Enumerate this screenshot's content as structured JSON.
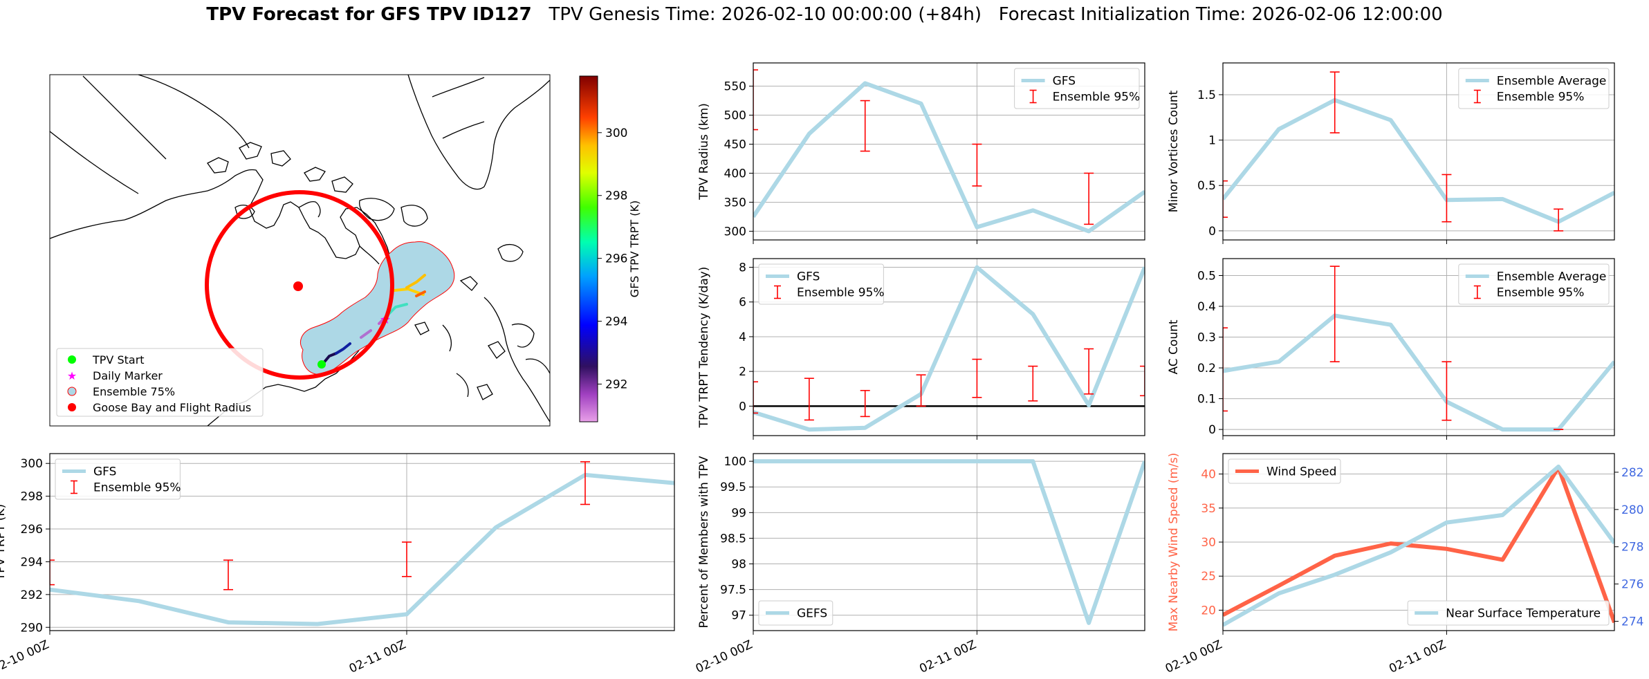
{
  "title": {
    "bold": "TPV Forecast for GFS TPV ID127",
    "genesis": "TPV Genesis Time: 2026-02-10 00:00:00 (+84h)",
    "init": "Forecast Initialization Time: 2026-02-06 12:00:00"
  },
  "colors": {
    "gfs_line": "#add8e6",
    "ensemble_err": "#ff0000",
    "wind": "#ff6347",
    "temp_axis": "#4169e1",
    "zero_line": "#000000",
    "swath_fill": "#add8e6",
    "swath_edge": "#ff0000",
    "flight_radius": "#ff0000",
    "start_marker": "#00ff00",
    "daily_marker": "#ff00ff",
    "goose_bay": "#ff0000"
  },
  "map": {
    "colorbar": {
      "label": "GFS TPV TRPT (K)",
      "ticks": [
        292,
        294,
        296,
        298,
        300
      ],
      "range": [
        290.8,
        301.8
      ]
    },
    "legend": [
      "TPV Start",
      "Daily Marker",
      "Ensemble 75%",
      "Goose Bay and Flight Radius"
    ]
  },
  "x_tick_labels": [
    "02-10 00Z",
    "02-11 00Z"
  ],
  "chart_data": [
    {
      "id": "radius",
      "type": "line",
      "ylabel": "TPV Radius (km)",
      "ylim": [
        285,
        590
      ],
      "yticks": [
        300,
        350,
        400,
        450,
        500,
        550
      ],
      "x": [
        0,
        6,
        12,
        18,
        24,
        30,
        36,
        42
      ],
      "series": [
        {
          "name": "GFS",
          "values": [
            325,
            468,
            555,
            520,
            307,
            336,
            300,
            368
          ]
        }
      ],
      "error_bars": {
        "name": "Ensemble 95%",
        "x": [
          0,
          12,
          24,
          36
        ],
        "low": [
          475,
          438,
          378,
          312
        ],
        "high": [
          578,
          525,
          450,
          400
        ]
      },
      "legend": "upper right",
      "grid": true
    },
    {
      "id": "minor",
      "type": "line",
      "ylabel": "Minor Vortices Count",
      "ylim": [
        -0.1,
        1.85
      ],
      "yticks": [
        0.0,
        0.5,
        1.0,
        1.5
      ],
      "x": [
        0,
        6,
        12,
        18,
        24,
        30,
        36,
        42
      ],
      "series": [
        {
          "name": "Ensemble Average",
          "values": [
            0.35,
            1.12,
            1.44,
            1.22,
            0.34,
            0.35,
            0.1,
            0.42
          ]
        }
      ],
      "error_bars": {
        "name": "Ensemble 95%",
        "x": [
          0,
          12,
          24,
          36
        ],
        "low": [
          0.15,
          1.08,
          0.1,
          0.0
        ],
        "high": [
          0.55,
          1.75,
          0.62,
          0.24
        ]
      },
      "legend": "upper right",
      "grid": true
    },
    {
      "id": "tendency",
      "type": "line",
      "ylabel": "TPV TRPT Tendency (K/day)",
      "ylim": [
        -1.7,
        8.5
      ],
      "yticks": [
        0,
        2,
        4,
        6,
        8
      ],
      "x": [
        0,
        6,
        12,
        18,
        24,
        30,
        36,
        42
      ],
      "series": [
        {
          "name": "GFS",
          "values": [
            -0.35,
            -1.35,
            -1.25,
            0.7,
            8.0,
            5.3,
            0.05,
            8.0
          ]
        }
      ],
      "error_bars": {
        "name": "Ensemble 95%",
        "x": [
          0,
          6,
          12,
          18,
          24,
          30,
          36,
          42
        ],
        "low": [
          -0.4,
          -0.8,
          -0.6,
          0.0,
          0.5,
          0.3,
          0.7,
          0.6
        ],
        "high": [
          1.4,
          1.6,
          0.9,
          1.8,
          2.7,
          2.3,
          3.3,
          2.3
        ]
      },
      "hline": 0,
      "legend": "upper left",
      "grid": true
    },
    {
      "id": "ac",
      "type": "line",
      "ylabel": "AC Count",
      "ylim": [
        -0.02,
        0.555
      ],
      "yticks": [
        0.0,
        0.1,
        0.2,
        0.3,
        0.4,
        0.5
      ],
      "x": [
        0,
        6,
        12,
        18,
        24,
        30,
        36,
        42
      ],
      "series": [
        {
          "name": "Ensemble Average",
          "values": [
            0.19,
            0.22,
            0.37,
            0.34,
            0.09,
            0.0,
            0.0,
            0.22
          ]
        }
      ],
      "error_bars": {
        "name": "Ensemble 95%",
        "x": [
          0,
          12,
          24,
          36
        ],
        "low": [
          0.06,
          0.22,
          0.03,
          0.0
        ],
        "high": [
          0.33,
          0.53,
          0.22,
          0.0
        ]
      },
      "legend": "upper right",
      "grid": true
    },
    {
      "id": "trpt",
      "type": "line",
      "ylabel": "TPV TRPT (K)",
      "ylim": [
        289.8,
        300.6
      ],
      "yticks": [
        290,
        292,
        294,
        296,
        298,
        300
      ],
      "x": [
        0,
        6,
        12,
        18,
        24,
        30,
        36,
        42
      ],
      "series": [
        {
          "name": "GFS",
          "values": [
            292.3,
            291.6,
            290.3,
            290.2,
            290.8,
            296.1,
            299.3,
            298.8
          ]
        }
      ],
      "error_bars": {
        "name": "Ensemble 95%",
        "x": [
          0,
          12,
          24,
          36
        ],
        "low": [
          292.6,
          292.3,
          293.1,
          297.5
        ],
        "high": [
          294.1,
          294.1,
          295.2,
          300.1
        ]
      },
      "legend": "upper left",
      "grid": true
    },
    {
      "id": "percent",
      "type": "line",
      "ylabel": "Percent of Members with TPV",
      "ylim": [
        96.7,
        100.15
      ],
      "yticks": [
        97.0,
        97.5,
        98.0,
        98.5,
        99.0,
        99.5,
        100.0
      ],
      "x": [
        0,
        6,
        12,
        18,
        24,
        30,
        36,
        42
      ],
      "series": [
        {
          "name": "GEFS",
          "values": [
            100,
            100,
            100,
            100,
            100,
            100,
            96.85,
            100
          ]
        }
      ],
      "legend": "lower left",
      "grid": true
    },
    {
      "id": "wind",
      "type": "line",
      "ylabel": "Max Nearby Wind Speed (m/s)",
      "ylabel_right": "Near Surface Temperature (K)",
      "ylim": [
        17,
        43
      ],
      "yticks": [
        20,
        25,
        30,
        35,
        40
      ],
      "ylim_right": [
        273.5,
        283
      ],
      "yticks_right": [
        274,
        276,
        278,
        280,
        282
      ],
      "x": [
        0,
        6,
        12,
        18,
        24,
        30,
        36,
        42
      ],
      "series": [
        {
          "name": "Wind Speed",
          "axis": "left",
          "values": [
            19.3,
            23.6,
            28.0,
            29.8,
            29.0,
            27.4,
            41.0,
            18.2
          ]
        },
        {
          "name": "Near Surface Temperature",
          "axis": "right",
          "values": [
            273.8,
            275.5,
            276.5,
            277.7,
            279.3,
            279.7,
            282.3,
            278.2
          ]
        }
      ],
      "legend": [
        "upper left",
        "lower right"
      ],
      "grid": true
    }
  ]
}
